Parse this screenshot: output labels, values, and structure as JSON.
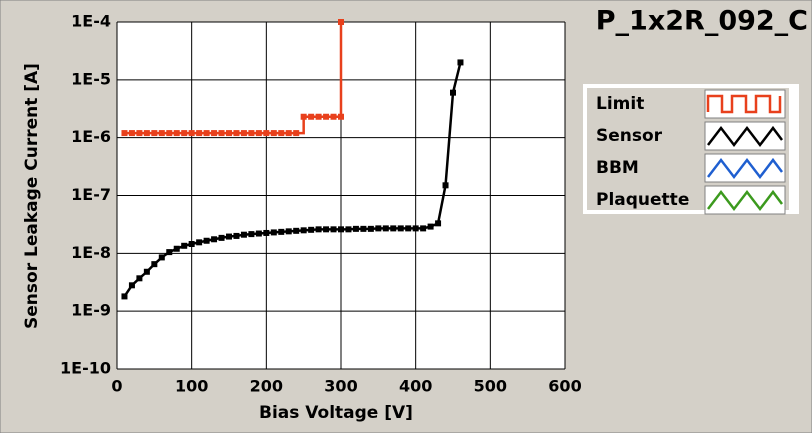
{
  "chart_data": {
    "type": "line",
    "title": "P_1x2R_092_C",
    "x_label": "Bias Voltage [V]",
    "y_label": "Sensor Leakage Current [A]",
    "xlim": [
      0,
      600
    ],
    "xticks": [
      0,
      100,
      200,
      300,
      400,
      500,
      600
    ],
    "ylim": [
      1e-10,
      0.0001
    ],
    "yscale": "log",
    "yticks": [
      {
        "value": 1e-10,
        "label": "1E-10"
      },
      {
        "value": 1e-09,
        "label": "1E-9"
      },
      {
        "value": 1e-08,
        "label": "1E-8"
      },
      {
        "value": 1e-07,
        "label": "1E-7"
      },
      {
        "value": 1e-06,
        "label": "1E-6"
      },
      {
        "value": 1e-05,
        "label": "1E-5"
      },
      {
        "value": 0.0001,
        "label": "1E-4"
      }
    ],
    "grid": true,
    "series": [
      {
        "name": "Limit",
        "color": "#e8401c",
        "interpolation": "step",
        "x": [
          10,
          20,
          30,
          40,
          50,
          60,
          70,
          80,
          90,
          100,
          110,
          120,
          130,
          140,
          150,
          160,
          170,
          180,
          190,
          200,
          210,
          220,
          230,
          240,
          250,
          260,
          270,
          280,
          290,
          300,
          300
        ],
        "values": [
          1.2e-06,
          1.2e-06,
          1.2e-06,
          1.2e-06,
          1.2e-06,
          1.2e-06,
          1.2e-06,
          1.2e-06,
          1.2e-06,
          1.2e-06,
          1.2e-06,
          1.2e-06,
          1.2e-06,
          1.2e-06,
          1.2e-06,
          1.2e-06,
          1.2e-06,
          1.2e-06,
          1.2e-06,
          1.2e-06,
          1.2e-06,
          1.2e-06,
          1.2e-06,
          1.2e-06,
          2.3e-06,
          2.3e-06,
          2.3e-06,
          2.3e-06,
          2.3e-06,
          2.3e-06,
          0.0001
        ]
      },
      {
        "name": "Sensor",
        "color": "#000000",
        "interpolation": "linear",
        "x": [
          10,
          20,
          30,
          40,
          50,
          60,
          70,
          80,
          90,
          100,
          110,
          120,
          130,
          140,
          150,
          160,
          170,
          180,
          190,
          200,
          210,
          220,
          230,
          240,
          250,
          260,
          270,
          280,
          290,
          300,
          310,
          320,
          330,
          340,
          350,
          360,
          370,
          380,
          390,
          400,
          410,
          420,
          430,
          440,
          450,
          460
        ],
        "values": [
          1.8e-09,
          2.8e-09,
          3.7e-09,
          4.8e-09,
          6.5e-09,
          8.5e-09,
          1.05e-08,
          1.2e-08,
          1.35e-08,
          1.45e-08,
          1.55e-08,
          1.65e-08,
          1.75e-08,
          1.85e-08,
          1.95e-08,
          2e-08,
          2.1e-08,
          2.15e-08,
          2.2e-08,
          2.25e-08,
          2.3e-08,
          2.35e-08,
          2.4e-08,
          2.45e-08,
          2.5e-08,
          2.55e-08,
          2.6e-08,
          2.6e-08,
          2.6e-08,
          2.6e-08,
          2.6e-08,
          2.65e-08,
          2.65e-08,
          2.65e-08,
          2.7e-08,
          2.7e-08,
          2.7e-08,
          2.7e-08,
          2.7e-08,
          2.7e-08,
          2.7e-08,
          2.9e-08,
          3.3e-08,
          1.5e-07,
          6e-06,
          2e-05
        ]
      },
      {
        "name": "BBM",
        "color": "#1f5fd0",
        "interpolation": "linear",
        "x": [],
        "values": []
      },
      {
        "name": "Plaquette",
        "color": "#3c9a1e",
        "interpolation": "linear",
        "x": [],
        "values": []
      }
    ]
  }
}
